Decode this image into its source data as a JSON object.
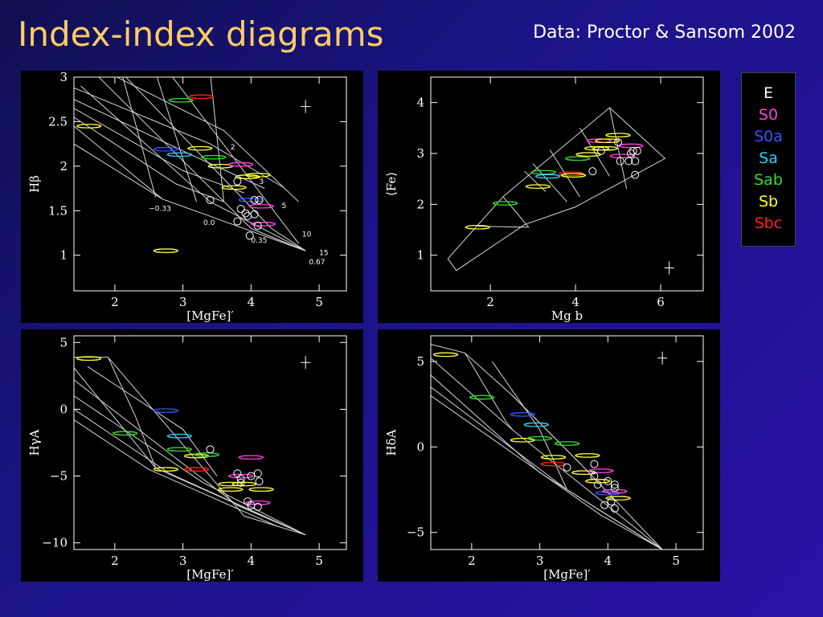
{
  "slide": {
    "title": "Index-index diagrams",
    "credit": "Data: Proctor & Sansom 2002"
  },
  "legend": [
    {
      "label": "E",
      "color": "#ffffff"
    },
    {
      "label": "S0",
      "color": "#ff44dd"
    },
    {
      "label": "S0a",
      "color": "#3355ff"
    },
    {
      "label": "Sa",
      "color": "#33ccff"
    },
    {
      "label": "Sab",
      "color": "#33dd33"
    },
    {
      "label": "Sb",
      "color": "#ffff33"
    },
    {
      "label": "Sbc",
      "color": "#ff2222"
    }
  ],
  "chart_data": [
    {
      "type": "scatter",
      "xlabel": "[MgFe]′",
      "ylabel": "Hβ",
      "xlim": [
        1.4,
        5.4
      ],
      "ylim": [
        0.6,
        3.0
      ],
      "xticks": [
        2,
        3,
        4,
        5
      ],
      "yticks": [
        1,
        1.5,
        2,
        2.5,
        3
      ],
      "ytick_labels": [
        "1",
        "1.5",
        "2",
        "2.5",
        "3"
      ],
      "grid_annotations": [
        {
          "text": "2",
          "x": 3.7,
          "y": 2.19
        },
        {
          "text": "3",
          "x": 4.12,
          "y": 1.8
        },
        {
          "text": "5",
          "x": 4.45,
          "y": 1.53
        },
        {
          "text": "10",
          "x": 4.75,
          "y": 1.21
        },
        {
          "text": "15",
          "x": 5.0,
          "y": 1.0
        },
        {
          "text": "−0.33",
          "x": 2.5,
          "y": 1.5
        },
        {
          "text": "0.0",
          "x": 3.3,
          "y": 1.34
        },
        {
          "text": "0.35",
          "x": 4.0,
          "y": 1.14
        },
        {
          "text": "0.67",
          "x": 4.85,
          "y": 0.9
        }
      ],
      "grid_lines": [
        [
          [
            1.4,
            2.45
          ],
          [
            2.7,
            1.63
          ],
          [
            4.8,
            1.05
          ]
        ],
        [
          [
            1.4,
            2.25
          ],
          [
            2.7,
            1.63
          ]
        ],
        [
          [
            1.5,
            2.9
          ],
          [
            3.4,
            1.6
          ],
          [
            4.8,
            1.05
          ]
        ],
        [
          [
            1.7,
            3.05
          ],
          [
            4.0,
            1.3
          ],
          [
            4.8,
            1.05
          ]
        ],
        [
          [
            2.1,
            3.05
          ],
          [
            4.3,
            1.3
          ],
          [
            4.8,
            1.05
          ]
        ],
        [
          [
            2.8,
            3.05
          ],
          [
            4.7,
            1.13
          ]
        ],
        [
          [
            1.4,
            2.55
          ],
          [
            2.9,
            1.8
          ],
          [
            3.6,
            1.6
          ]
        ],
        [
          [
            1.4,
            2.65
          ],
          [
            3.0,
            1.95
          ],
          [
            3.9,
            1.7
          ]
        ],
        [
          [
            1.4,
            2.75
          ],
          [
            3.2,
            2.1
          ],
          [
            4.2,
            1.75
          ]
        ],
        [
          [
            1.4,
            2.88
          ],
          [
            3.4,
            2.25
          ],
          [
            4.5,
            1.75
          ]
        ],
        [
          [
            1.9,
            3.05
          ],
          [
            3.6,
            2.4
          ],
          [
            4.7,
            1.6
          ]
        ],
        [
          [
            2.1,
            3.05
          ],
          [
            2.6,
            1.65
          ]
        ],
        [
          [
            2.6,
            3.05
          ],
          [
            3.2,
            1.6
          ]
        ],
        [
          [
            3.4,
            3.05
          ],
          [
            3.6,
            1.6
          ]
        ]
      ],
      "ellipses": [
        {
          "x": 1.62,
          "y": 2.45,
          "color": "#ffff33"
        },
        {
          "x": 2.75,
          "y": 1.05,
          "color": "#ffff33"
        },
        {
          "x": 2.97,
          "y": 2.74,
          "color": "#33dd33"
        },
        {
          "x": 3.27,
          "y": 2.78,
          "color": "#ff2222"
        },
        {
          "x": 2.75,
          "y": 2.19,
          "color": "#3355ff"
        },
        {
          "x": 2.95,
          "y": 2.13,
          "color": "#33ccff"
        },
        {
          "x": 3.25,
          "y": 2.2,
          "color": "#ffff33"
        },
        {
          "x": 3.45,
          "y": 2.1,
          "color": "#33dd33"
        },
        {
          "x": 3.55,
          "y": 2.0,
          "color": "#ffff33"
        },
        {
          "x": 3.75,
          "y": 1.76,
          "color": "#ffff33"
        },
        {
          "x": 3.95,
          "y": 1.88,
          "color": "#ffff33"
        },
        {
          "x": 4.1,
          "y": 1.9,
          "color": "#ffff33"
        },
        {
          "x": 3.85,
          "y": 2.02,
          "color": "#ff44dd"
        },
        {
          "x": 4.0,
          "y": 1.62,
          "color": "#3355ff"
        },
        {
          "x": 4.15,
          "y": 1.55,
          "color": "#ff44dd"
        },
        {
          "x": 4.18,
          "y": 1.35,
          "color": "#ff44dd"
        }
      ],
      "circles": [
        [
          3.4,
          1.62
        ],
        [
          3.8,
          1.83
        ],
        [
          3.85,
          1.52
        ],
        [
          3.95,
          1.44
        ],
        [
          4.05,
          1.62
        ],
        [
          4.12,
          1.62
        ],
        [
          3.8,
          1.38
        ],
        [
          3.92,
          1.47
        ],
        [
          4.05,
          1.46
        ],
        [
          4.1,
          1.33
        ],
        [
          3.98,
          1.22
        ]
      ],
      "cross": {
        "x": 4.8,
        "y": 2.67
      }
    },
    {
      "type": "scatter",
      "xlabel": "Mg b",
      "ylabel": "⟨Fe⟩",
      "xlim": [
        0.6,
        7.0
      ],
      "ylim": [
        0.3,
        4.5
      ],
      "xticks": [
        2,
        4,
        6
      ],
      "yticks": [
        1,
        2,
        3,
        4
      ],
      "ytick_labels": [
        "1",
        "2",
        "3",
        "4"
      ],
      "grid_lines": [
        [
          [
            1.0,
            0.93
          ],
          [
            2.3,
            2.15
          ],
          [
            4.8,
            3.9
          ],
          [
            6.1,
            2.9
          ],
          [
            4.0,
            1.95
          ],
          [
            2.8,
            1.6
          ],
          [
            1.2,
            0.7
          ],
          [
            1.0,
            0.93
          ]
        ],
        [
          [
            1.7,
            1.57
          ],
          [
            2.9,
            1.55
          ]
        ],
        [
          [
            2.8,
            2.65
          ],
          [
            3.3,
            2.25
          ]
        ],
        [
          [
            3.0,
            2.8
          ],
          [
            3.8,
            2.05
          ]
        ],
        [
          [
            3.4,
            3.07
          ],
          [
            4.1,
            2.15
          ]
        ],
        [
          [
            4.1,
            3.5
          ],
          [
            4.8,
            2.55
          ]
        ],
        [
          [
            4.8,
            3.9
          ],
          [
            5.2,
            2.3
          ]
        ],
        [
          [
            2.3,
            2.15
          ],
          [
            2.9,
            1.55
          ]
        ]
      ],
      "ellipses": [
        {
          "x": 1.7,
          "y": 1.55,
          "color": "#ffff33"
        },
        {
          "x": 2.35,
          "y": 2.02,
          "color": "#33dd33"
        },
        {
          "x": 3.12,
          "y": 2.35,
          "color": "#ffff33"
        },
        {
          "x": 3.25,
          "y": 2.63,
          "color": "#33dd33"
        },
        {
          "x": 3.35,
          "y": 2.55,
          "color": "#33ccff"
        },
        {
          "x": 3.9,
          "y": 2.6,
          "color": "#ff2222"
        },
        {
          "x": 3.95,
          "y": 2.57,
          "color": "#ffff33"
        },
        {
          "x": 4.05,
          "y": 2.9,
          "color": "#33dd33"
        },
        {
          "x": 4.3,
          "y": 2.98,
          "color": "#ffff33"
        },
        {
          "x": 4.5,
          "y": 3.1,
          "color": "#ffff33"
        },
        {
          "x": 4.55,
          "y": 3.25,
          "color": "#ff44dd"
        },
        {
          "x": 4.75,
          "y": 3.25,
          "color": "#ffff33"
        },
        {
          "x": 5.0,
          "y": 3.36,
          "color": "#ffff33"
        },
        {
          "x": 5.3,
          "y": 3.15,
          "color": "#ff44dd"
        },
        {
          "x": 5.1,
          "y": 2.95,
          "color": "#ff44dd"
        },
        {
          "x": 4.7,
          "y": 3.1,
          "color": "#ffff33"
        }
      ],
      "circles": [
        [
          4.4,
          2.65
        ],
        [
          4.6,
          3.05
        ],
        [
          5.0,
          3.22
        ],
        [
          5.05,
          2.85
        ],
        [
          5.3,
          3.0
        ],
        [
          5.35,
          3.05
        ],
        [
          5.25,
          2.85
        ],
        [
          5.4,
          2.85
        ],
        [
          5.4,
          2.58
        ],
        [
          5.45,
          3.05
        ]
      ],
      "cross": {
        "x": 6.2,
        "y": 0.75
      }
    },
    {
      "type": "scatter",
      "xlabel": "[MgFe]′",
      "ylabel": "HγA",
      "xlim": [
        1.4,
        5.4
      ],
      "ylim": [
        -10.5,
        5.5
      ],
      "xticks": [
        2,
        3,
        4,
        5
      ],
      "yticks": [
        -10,
        -5,
        0,
        5
      ],
      "ytick_labels": [
        "−10",
        "−5",
        "0",
        "5"
      ],
      "grid_lines": [
        [
          [
            1.4,
            3.9
          ],
          [
            1.9,
            3.9
          ],
          [
            3.9,
            -8.0
          ],
          [
            4.8,
            -9.4
          ]
        ],
        [
          [
            1.4,
            3.1
          ],
          [
            2.6,
            -4.4
          ],
          [
            4.8,
            -9.4
          ]
        ],
        [
          [
            1.4,
            2.2
          ],
          [
            3.8,
            -7.2
          ],
          [
            4.8,
            -9.4
          ]
        ],
        [
          [
            1.4,
            1.0
          ],
          [
            3.3,
            -5.5
          ],
          [
            4.8,
            -9.4
          ]
        ],
        [
          [
            1.4,
            0.0
          ],
          [
            2.8,
            -4.8
          ],
          [
            4.8,
            -9.4
          ]
        ],
        [
          [
            1.4,
            -0.8
          ],
          [
            2.5,
            -4.5
          ],
          [
            4.4,
            -8.8
          ]
        ],
        [
          [
            1.9,
            3.9
          ],
          [
            2.3,
            -0.5
          ],
          [
            2.6,
            -4.4
          ]
        ],
        [
          [
            1.6,
            3.2
          ],
          [
            3.0,
            -1.5
          ],
          [
            3.5,
            -5.0
          ]
        ]
      ],
      "ellipses": [
        {
          "x": 1.62,
          "y": 3.8,
          "color": "#ffff33"
        },
        {
          "x": 2.15,
          "y": -1.8,
          "color": "#33dd33"
        },
        {
          "x": 2.75,
          "y": -0.1,
          "color": "#3355ff"
        },
        {
          "x": 2.95,
          "y": -2.0,
          "color": "#33ccff"
        },
        {
          "x": 2.95,
          "y": -3.0,
          "color": "#33dd33"
        },
        {
          "x": 3.2,
          "y": -3.5,
          "color": "#ffff33"
        },
        {
          "x": 3.35,
          "y": -3.4,
          "color": "#33dd33"
        },
        {
          "x": 2.75,
          "y": -4.5,
          "color": "#ffff33"
        },
        {
          "x": 3.2,
          "y": -4.5,
          "color": "#ff2222"
        },
        {
          "x": 3.7,
          "y": -5.6,
          "color": "#ffff33"
        },
        {
          "x": 3.9,
          "y": -5.6,
          "color": "#ffff33"
        },
        {
          "x": 3.7,
          "y": -6.0,
          "color": "#ffff33"
        },
        {
          "x": 4.0,
          "y": -3.6,
          "color": "#ff44dd"
        },
        {
          "x": 3.85,
          "y": -5.0,
          "color": "#ff44dd"
        },
        {
          "x": 4.1,
          "y": -7.0,
          "color": "#ff44dd"
        },
        {
          "x": 4.15,
          "y": -6.0,
          "color": "#ffff33"
        }
      ],
      "circles": [
        [
          3.4,
          -3.0
        ],
        [
          3.8,
          -4.8
        ],
        [
          3.85,
          -5.2
        ],
        [
          4.0,
          -5.0
        ],
        [
          4.1,
          -4.8
        ],
        [
          4.12,
          -5.4
        ],
        [
          3.95,
          -6.9
        ],
        [
          4.0,
          -7.2
        ],
        [
          4.1,
          -7.3
        ],
        [
          3.85,
          -5.5
        ]
      ],
      "cross": {
        "x": 4.8,
        "y": 3.5
      }
    },
    {
      "type": "scatter",
      "xlabel": "[MgFe]′",
      "ylabel": "HδA",
      "xlim": [
        1.4,
        5.4
      ],
      "ylim": [
        -6.0,
        6.5
      ],
      "xticks": [
        2,
        3,
        4,
        5
      ],
      "yticks": [
        -5,
        0,
        5
      ],
      "ytick_labels": [
        "−5",
        "0",
        "5"
      ],
      "grid_lines": [
        [
          [
            1.4,
            6.0
          ],
          [
            1.9,
            5.5
          ],
          [
            2.6,
            3.0
          ],
          [
            3.6,
            -1.0
          ],
          [
            4.8,
            -6.0
          ]
        ],
        [
          [
            1.4,
            5.2
          ],
          [
            2.6,
            1.0
          ],
          [
            4.8,
            -6.0
          ]
        ],
        [
          [
            1.4,
            4.2
          ],
          [
            3.0,
            -1.5
          ],
          [
            4.8,
            -6.0
          ]
        ],
        [
          [
            1.4,
            3.5
          ],
          [
            3.4,
            -2.5
          ],
          [
            4.8,
            -6.0
          ]
        ],
        [
          [
            1.4,
            3.0
          ],
          [
            3.9,
            -4.0
          ],
          [
            4.8,
            -6.0
          ]
        ],
        [
          [
            1.9,
            5.5
          ],
          [
            2.5,
            1.5
          ],
          [
            2.6,
            1.0
          ]
        ],
        [
          [
            2.3,
            5.0
          ],
          [
            3.0,
            1.0
          ],
          [
            3.4,
            -2.5
          ]
        ],
        [
          [
            2.6,
            3.0
          ],
          [
            3.6,
            -1.0
          ]
        ]
      ],
      "ellipses": [
        {
          "x": 1.62,
          "y": 5.4,
          "color": "#ffff33"
        },
        {
          "x": 2.15,
          "y": 2.9,
          "color": "#33dd33"
        },
        {
          "x": 2.75,
          "y": 1.9,
          "color": "#3355ff"
        },
        {
          "x": 2.95,
          "y": 1.3,
          "color": "#33ccff"
        },
        {
          "x": 2.75,
          "y": 0.4,
          "color": "#ffff33"
        },
        {
          "x": 3.0,
          "y": 0.5,
          "color": "#33dd33"
        },
        {
          "x": 3.4,
          "y": 0.2,
          "color": "#33dd33"
        },
        {
          "x": 3.2,
          "y": -0.6,
          "color": "#ffff33"
        },
        {
          "x": 3.2,
          "y": -1.0,
          "color": "#ff2222"
        },
        {
          "x": 3.7,
          "y": -0.5,
          "color": "#ffff33"
        },
        {
          "x": 3.65,
          "y": -1.5,
          "color": "#ffff33"
        },
        {
          "x": 3.9,
          "y": -1.4,
          "color": "#ff44dd"
        },
        {
          "x": 3.85,
          "y": -2.0,
          "color": "#ffff33"
        },
        {
          "x": 4.0,
          "y": -2.7,
          "color": "#3355ff"
        },
        {
          "x": 4.1,
          "y": -2.6,
          "color": "#ff44dd"
        },
        {
          "x": 4.15,
          "y": -3.0,
          "color": "#ffff33"
        }
      ],
      "circles": [
        [
          3.4,
          -1.2
        ],
        [
          3.8,
          -1.0
        ],
        [
          3.8,
          -1.7
        ],
        [
          3.85,
          -2.2
        ],
        [
          4.0,
          -2.0
        ],
        [
          4.1,
          -2.4
        ],
        [
          4.1,
          -2.2
        ],
        [
          3.95,
          -3.4
        ],
        [
          4.05,
          -3.2
        ],
        [
          4.1,
          -3.6
        ]
      ],
      "cross": {
        "x": 4.8,
        "y": 5.2
      }
    }
  ]
}
